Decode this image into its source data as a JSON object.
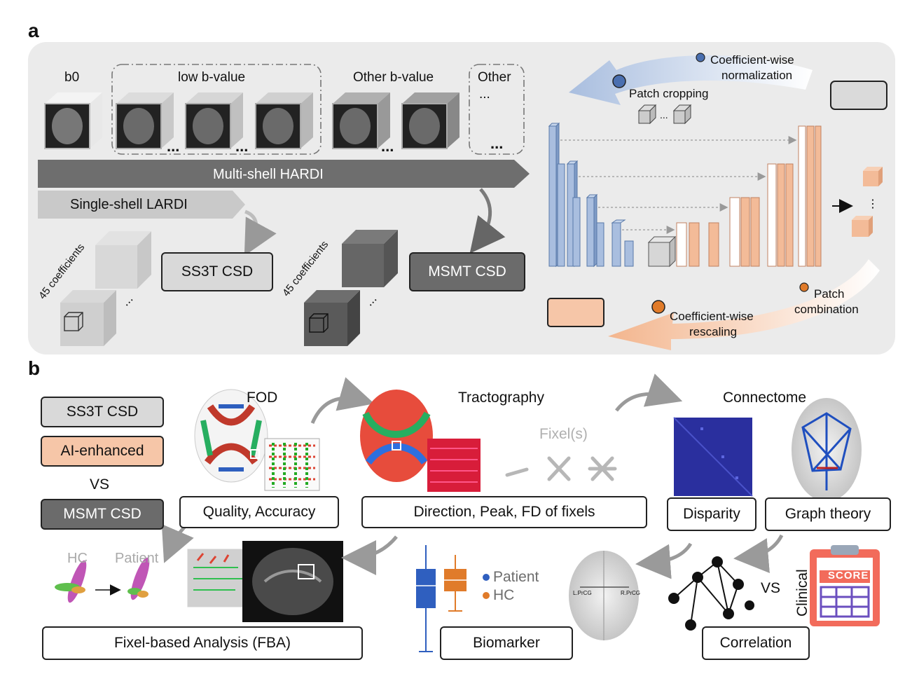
{
  "panels": {
    "a": "a",
    "b": "b"
  },
  "panel_a": {
    "b0": "b0",
    "low_b_value": "low b-value",
    "other_b_value": "Other b-value",
    "other": "Other",
    "other_dots": "...",
    "ellipsis": "...",
    "multi_shell": "Multi-shell HARDI",
    "single_shell": "Single-shell LARDI",
    "coefficients_1": "45 coefficients",
    "coefficients_2": "45 coefficients",
    "ss3t_csd": "SS3T CSD",
    "msmt_csd": "MSMT CSD",
    "coef_norm_line1": "Coefficient-wise",
    "coef_norm_line2": "normalization",
    "patch_cropping": "Patch cropping",
    "patch_dots": "...",
    "coef_rescale_line1": "Coefficient-wise",
    "coef_rescale_line2": "rescaling",
    "patch_comb_line1": "Patch",
    "patch_comb_line2": "combination"
  },
  "panel_b": {
    "legend_ss3t": "SS3T CSD",
    "legend_ai": "AI-enhanced",
    "legend_vs": "VS",
    "legend_msmt": "MSMT CSD",
    "fod_title": "FOD",
    "tract_title": "Tractography",
    "connectome_title": "Connectome",
    "fixels_label": "Fixel(s)",
    "quality_box": "Quality, Accuracy",
    "direction_box": "Direction, Peak, FD of fixels",
    "disparity_box": "Disparity",
    "graph_box": "Graph theory",
    "hc_label": "HC",
    "patient_label": "Patient",
    "fba_box": "Fixel-based Analysis (FBA)",
    "legend_patient": "Patient",
    "legend_hc": "HC",
    "biomarker_box": "Biomarker",
    "l_prcg": "L.PrCG",
    "r_prcg": "R.PrCG",
    "vs2": "VS",
    "clinical": "Clinical",
    "score": "SCORE",
    "correlation_box": "Correlation"
  },
  "colors": {
    "ss3t": "#d9d9d9",
    "ai": "#f6c6a8",
    "msmt": "#6b6b6b",
    "unet_blue": "#a9bedf",
    "unet_orange": "#f3bb98",
    "patient": "#2f5fbf",
    "hc": "#e07b2a"
  }
}
